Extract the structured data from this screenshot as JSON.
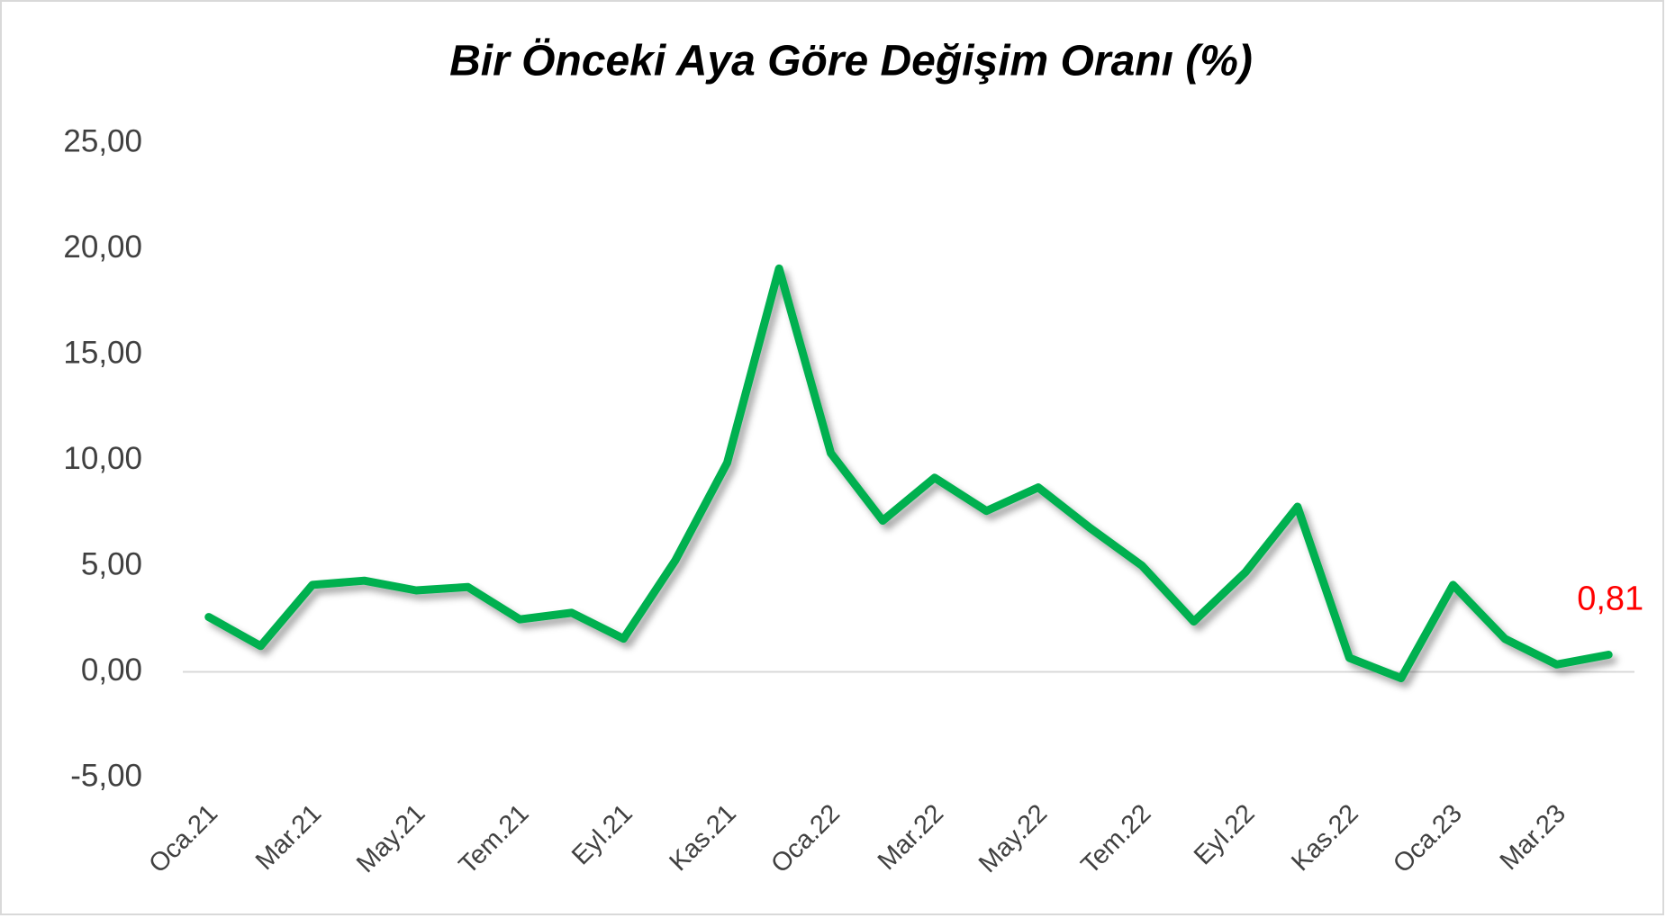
{
  "chart_data": {
    "type": "line",
    "title": "Bir Önceki Aya Göre Değişim Oranı (%)",
    "categories": [
      "Oca.21",
      null,
      "Mar.21",
      null,
      "May.21",
      null,
      "Tem.21",
      null,
      "Eyl.21",
      null,
      "Kas.21",
      null,
      "Oca.22",
      null,
      "Mar.22",
      null,
      "May.22",
      null,
      "Tem.22",
      null,
      "Eyl.22",
      null,
      "Kas.22",
      null,
      "Oca.23",
      null,
      "Mar.23",
      null
    ],
    "series": [
      {
        "name": "Değişim Oranı",
        "color": "#00b050",
        "values": [
          2.59,
          1.22,
          4.11,
          4.31,
          3.85,
          4.01,
          2.48,
          2.79,
          1.57,
          5.27,
          9.89,
          19.07,
          10.34,
          7.15,
          9.18,
          7.61,
          8.72,
          6.8,
          5.02,
          2.38,
          4.72,
          7.81,
          0.66,
          -0.3,
          4.11,
          1.56,
          0.35,
          0.81
        ],
        "value_labels": [
          null,
          null,
          null,
          null,
          null,
          null,
          null,
          null,
          null,
          null,
          null,
          null,
          null,
          null,
          null,
          null,
          null,
          null,
          null,
          null,
          null,
          null,
          null,
          null,
          null,
          null,
          null,
          "0,81"
        ],
        "value_label_color": "#ff0000"
      }
    ],
    "ylim": [
      -5,
      25
    ],
    "yticks": [
      {
        "value": -5,
        "label": "-5,00"
      },
      {
        "value": 0,
        "label": "0,00"
      },
      {
        "value": 5,
        "label": "5,00"
      },
      {
        "value": 10,
        "label": "10,00"
      },
      {
        "value": 15,
        "label": "15,00"
      },
      {
        "value": 20,
        "label": "20,00"
      },
      {
        "value": 25,
        "label": "25,00"
      }
    ],
    "grid": false
  }
}
